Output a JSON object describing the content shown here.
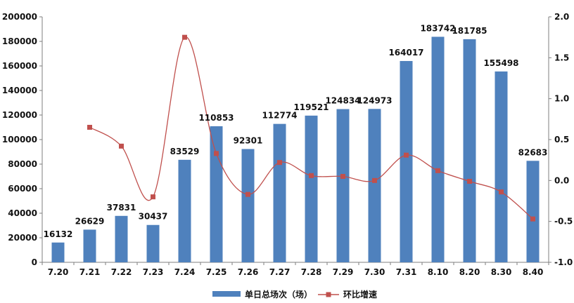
{
  "chart_data": {
    "type": "bar",
    "categories": [
      "7.20",
      "7.21",
      "7.22",
      "7.23",
      "7.24",
      "7.25",
      "7.26",
      "7.27",
      "7.28",
      "7.29",
      "7.30",
      "7.31",
      "8.10",
      "8.20",
      "8.30",
      "8.40"
    ],
    "series": [
      {
        "name": "单日总场次（场）",
        "type": "bar",
        "axis": "left",
        "color": "#4F81BD",
        "values": [
          16132,
          26629,
          37831,
          30437,
          83529,
          110853,
          92301,
          112774,
          119521,
          124834,
          124973,
          164017,
          183742,
          181785,
          155498,
          82683
        ]
      },
      {
        "name": "环比增速",
        "type": "line",
        "axis": "right",
        "color": "#C0504D",
        "values": [
          null,
          0.65,
          0.42,
          -0.2,
          1.75,
          0.33,
          -0.17,
          0.22,
          0.06,
          0.05,
          0.0,
          0.31,
          0.12,
          -0.01,
          -0.14,
          -0.47
        ]
      }
    ],
    "y_left": {
      "range": [
        0,
        200000
      ],
      "ticks": [
        "0",
        "20000",
        "40000",
        "60000",
        "80000",
        "100000",
        "120000",
        "140000",
        "160000",
        "180000",
        "200000"
      ]
    },
    "y_right": {
      "range": [
        -1.0,
        2.0
      ],
      "ticks": [
        "-1.0",
        "-0.5",
        "0.0",
        "0.5",
        "1.0",
        "1.5",
        "2.0"
      ]
    },
    "grid": false,
    "legend_position": "bottom-center"
  }
}
